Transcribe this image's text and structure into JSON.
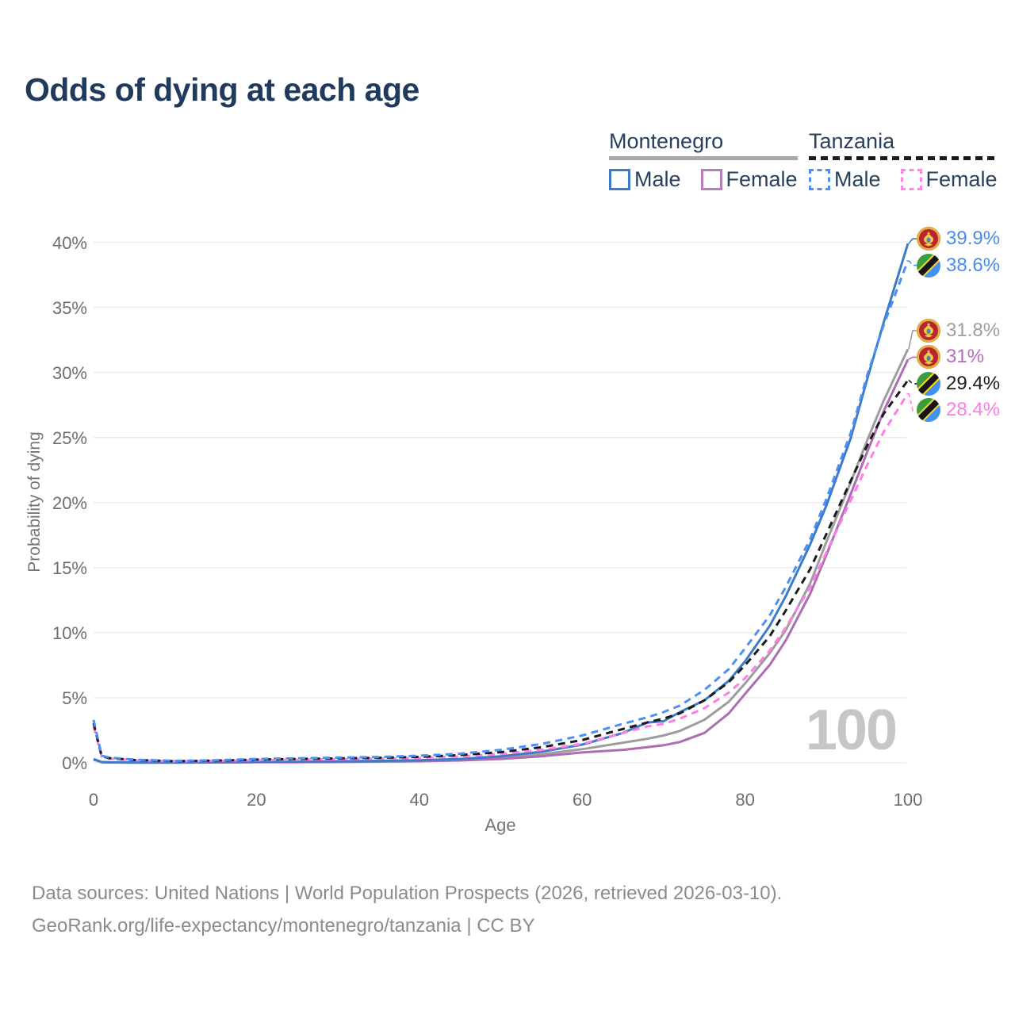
{
  "title": "Odds of dying at each age",
  "legend": {
    "groups": [
      {
        "country": "Montenegro",
        "line_style": "solid",
        "line_color": "#a8a8a8",
        "items": [
          {
            "label": "Male",
            "color": "#3d7bc8",
            "dashed": false
          },
          {
            "label": "Female",
            "color": "#b77fba",
            "dashed": false
          }
        ]
      },
      {
        "country": "Tanzania",
        "line_style": "dashed",
        "line_color": "#1b1b1b",
        "items": [
          {
            "label": "Male",
            "color": "#4c8ff8",
            "dashed": true
          },
          {
            "label": "Female",
            "color": "#ff85e8",
            "dashed": true
          }
        ]
      }
    ]
  },
  "watermark": "100",
  "footer": {
    "line1": "Data sources: United Nations | World Population Prospects (2026, retrieved 2026-03-10).",
    "line2": "GeoRank.org/life-expectancy/montenegro/tanzania | CC BY"
  },
  "chart_data": {
    "type": "line",
    "title": "Odds of dying at each age",
    "xlabel": "Age",
    "ylabel": "Probability of dying",
    "xlim": [
      0,
      100
    ],
    "ylim": [
      0,
      40
    ],
    "x_ticks": [
      0,
      20,
      40,
      60,
      80,
      100
    ],
    "y_ticks": [
      0,
      5,
      10,
      15,
      20,
      25,
      30,
      35,
      40
    ],
    "y_tick_suffix": "%",
    "grid": "horizontal",
    "gridline_color": "#eaeaea",
    "x": [
      0,
      1,
      2,
      5,
      10,
      15,
      20,
      25,
      30,
      35,
      40,
      45,
      50,
      55,
      60,
      65,
      68,
      70,
      72,
      75,
      78,
      80,
      83,
      85,
      88,
      90,
      93,
      95,
      97,
      100
    ],
    "series": [
      {
        "id": "mne-both",
        "name": "Montenegro Both sexes",
        "country": "Montenegro",
        "sex": "both",
        "color": "#9d9d9d",
        "dashed": false,
        "end_label": "31.8%",
        "label_color": "#9e9e9e",
        "flag": "mne",
        "values": [
          0.27,
          0.055,
          0.035,
          0.025,
          0.025,
          0.04,
          0.06,
          0.08,
          0.09,
          0.12,
          0.16,
          0.25,
          0.4,
          0.65,
          1.05,
          1.55,
          1.85,
          2.1,
          2.45,
          3.3,
          4.7,
          6.1,
          8.4,
          10.2,
          13.8,
          17.0,
          21.6,
          24.8,
          27.8,
          31.8
        ]
      },
      {
        "id": "mne-female",
        "name": "Montenegro Female",
        "country": "Montenegro",
        "sex": "female",
        "color": "#ad6cb4",
        "dashed": false,
        "end_label": "31%",
        "label_color": "#b56db9",
        "flag": "mne",
        "values": [
          0.25,
          0.05,
          0.03,
          0.02,
          0.02,
          0.03,
          0.04,
          0.05,
          0.06,
          0.09,
          0.12,
          0.18,
          0.3,
          0.5,
          0.8,
          1.0,
          1.2,
          1.35,
          1.6,
          2.3,
          3.8,
          5.3,
          7.5,
          9.4,
          13.0,
          16.0,
          20.7,
          23.9,
          27.0,
          31.0
        ]
      },
      {
        "id": "mne-male",
        "name": "Montenegro Male",
        "country": "Montenegro",
        "sex": "male",
        "color": "#3d7bc8",
        "dashed": false,
        "end_label": "39.9%",
        "label_color": "#4a8cf0",
        "flag": "mne",
        "values": [
          0.3,
          0.06,
          0.04,
          0.03,
          0.03,
          0.05,
          0.08,
          0.1,
          0.12,
          0.15,
          0.2,
          0.3,
          0.5,
          0.85,
          1.4,
          2.3,
          3.1,
          3.2,
          3.9,
          4.8,
          6.3,
          7.8,
          10.5,
          12.8,
          16.8,
          19.8,
          25.0,
          29.5,
          33.8,
          39.9
        ]
      },
      {
        "id": "tza-female",
        "name": "Tanzania Female",
        "country": "Tanzania",
        "sex": "female",
        "color": "#ff7de9",
        "dashed": true,
        "end_label": "28.4%",
        "label_color": "#ff7be4",
        "flag": "tza",
        "values": [
          2.8,
          0.45,
          0.33,
          0.2,
          0.12,
          0.15,
          0.2,
          0.24,
          0.28,
          0.33,
          0.38,
          0.5,
          0.68,
          1.0,
          1.45,
          2.3,
          2.8,
          3.0,
          3.4,
          4.2,
          5.4,
          6.5,
          8.6,
          10.4,
          13.5,
          16.2,
          20.2,
          22.9,
          25.4,
          28.4
        ]
      },
      {
        "id": "tza-both",
        "name": "Tanzania Both sexes",
        "country": "Tanzania",
        "sex": "both",
        "color": "#1b1b1b",
        "dashed": true,
        "end_label": "29.4%",
        "label_color": "#1c1c1c",
        "flag": "tza",
        "values": [
          3.05,
          0.5,
          0.36,
          0.22,
          0.13,
          0.17,
          0.25,
          0.3,
          0.34,
          0.39,
          0.46,
          0.6,
          0.82,
          1.2,
          1.75,
          2.6,
          3.1,
          3.4,
          3.8,
          4.8,
          6.2,
          7.5,
          9.7,
          11.7,
          14.9,
          17.6,
          21.7,
          24.4,
          26.8,
          29.4
        ]
      },
      {
        "id": "tza-male",
        "name": "Tanzania Male",
        "country": "Tanzania",
        "sex": "male",
        "color": "#4c8ff8",
        "dashed": true,
        "end_label": "38.6%",
        "label_color": "#4a8cf0",
        "flag": "tza",
        "values": [
          3.3,
          0.55,
          0.4,
          0.25,
          0.15,
          0.2,
          0.3,
          0.35,
          0.4,
          0.45,
          0.55,
          0.7,
          1.0,
          1.45,
          2.1,
          3.0,
          3.5,
          3.9,
          4.4,
          5.6,
          7.2,
          8.8,
          11.3,
          13.5,
          17.2,
          20.3,
          25.4,
          29.8,
          33.6,
          38.6
        ]
      }
    ]
  }
}
